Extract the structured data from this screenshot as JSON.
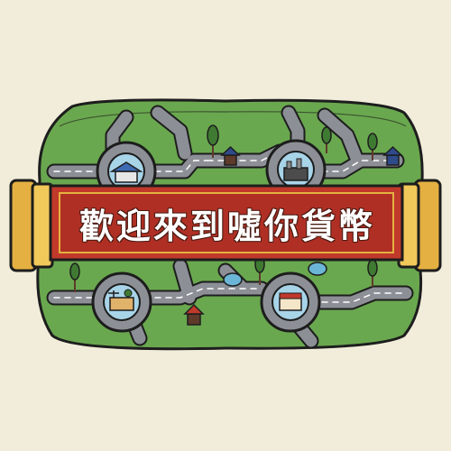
{
  "banner": {
    "title": "歡迎來到噓你貨幣"
  },
  "colors": {
    "background": "#f1edda",
    "grass": "#6aa84f",
    "road": "#8c9096",
    "banner_red": "#c0392b",
    "banner_gold": "#e4b041",
    "house": "#5e3a2a"
  },
  "map": {
    "landmarks": [
      {
        "kind": "gas-station"
      },
      {
        "kind": "factory"
      },
      {
        "kind": "farm"
      },
      {
        "kind": "shop-street"
      }
    ]
  }
}
